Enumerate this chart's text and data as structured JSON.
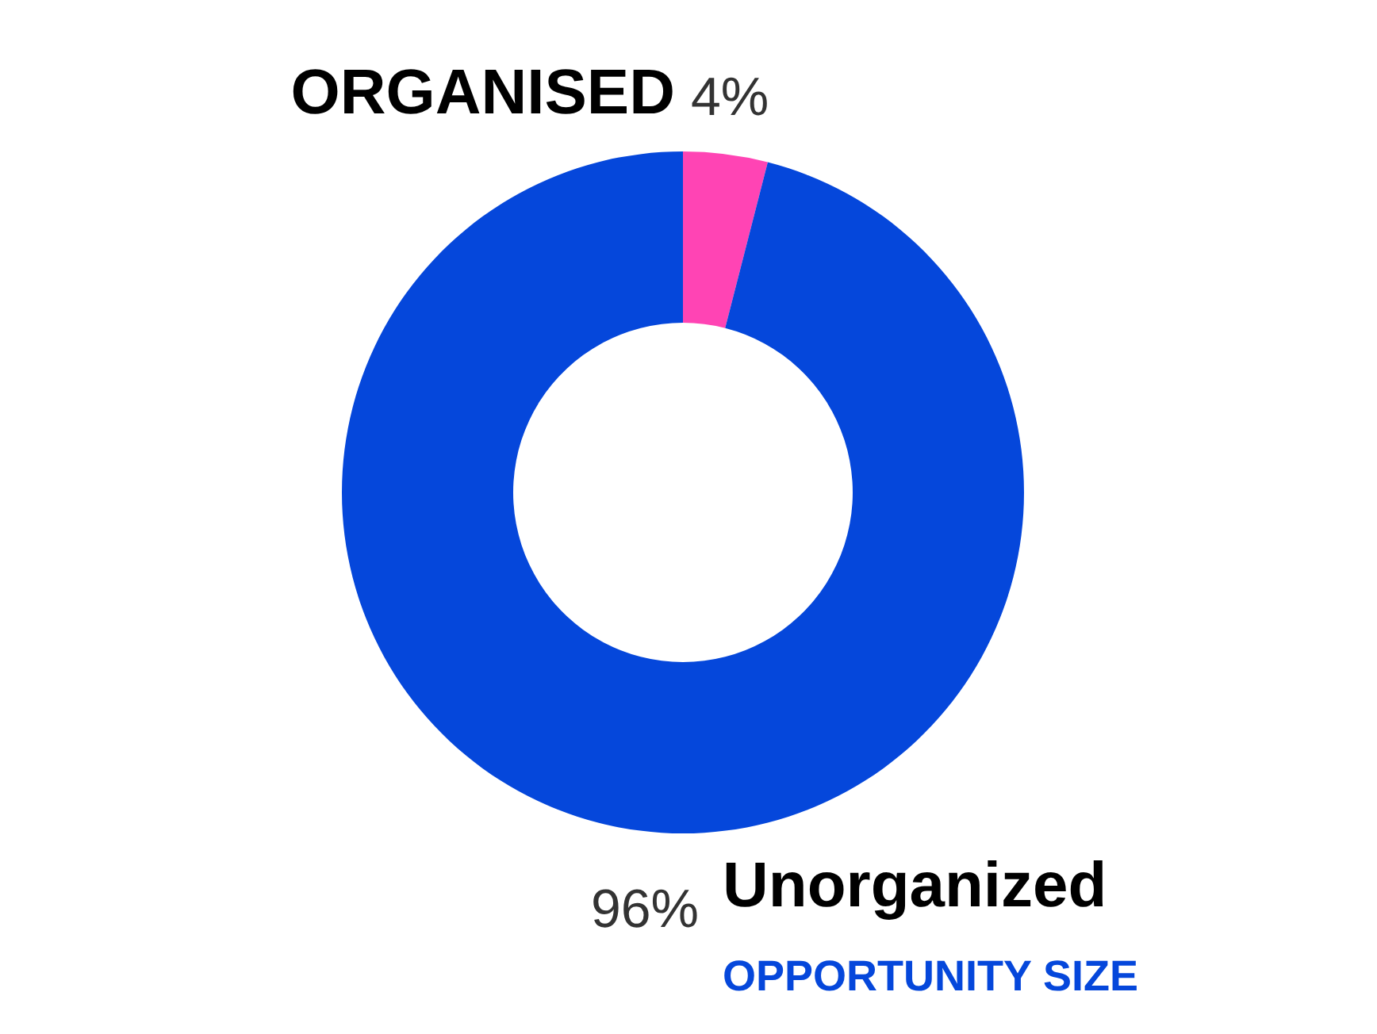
{
  "chart_data": {
    "type": "donut",
    "categories": [
      "ORGANISED",
      "Unorganized"
    ],
    "values": [
      4,
      96
    ],
    "colors": [
      "#ff44b4",
      "#0547db"
    ],
    "value_labels": [
      "4%",
      "96%"
    ],
    "annotations": [
      "OPPORTUNITY SIZE"
    ]
  }
}
